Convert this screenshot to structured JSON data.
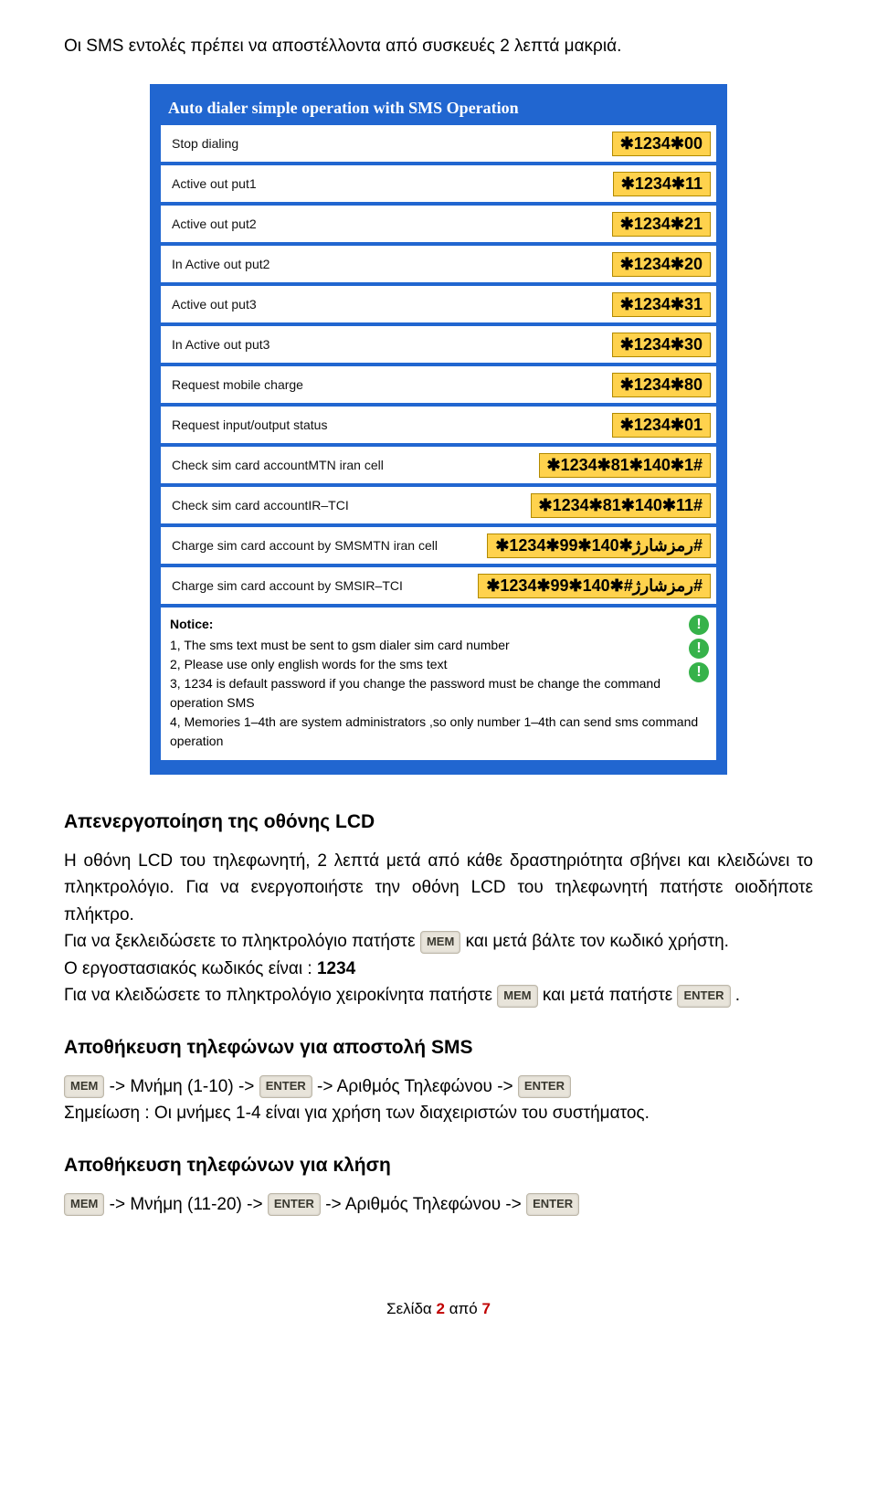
{
  "intro": "Οι SMS εντολές πρέπει να αποστέλλοντα από συσκευές 2 λεπτά μακριά.",
  "panel": {
    "title": "Auto dialer simple operation with SMS Operation",
    "rows": [
      {
        "label": "Stop dialing",
        "code": "✱1234✱00"
      },
      {
        "label": "Active out put1",
        "code": "✱1234✱11"
      },
      {
        "label": "Active out put2",
        "code": "✱1234✱21"
      },
      {
        "label": "In Active out put2",
        "code": "✱1234✱20"
      },
      {
        "label": "Active out put3",
        "code": "✱1234✱31"
      },
      {
        "label": "In Active out put3",
        "code": "✱1234✱30"
      },
      {
        "label": "Request mobile charge",
        "code": "✱1234✱80"
      },
      {
        "label": "Request input/output status",
        "code": "✱1234✱01"
      },
      {
        "label": "Check sim card accountMTN iran cell",
        "code": "✱1234✱81✱140✱1#"
      },
      {
        "label": "Check sim card accountIR–TCI",
        "code": "✱1234✱81✱140✱11#"
      },
      {
        "label": "Charge sim card account by SMSMTN iran cell",
        "code": "✱1234✱99✱140✱رمزشارژ#"
      },
      {
        "label": "Charge sim card account by SMSIR–TCI",
        "code": "✱1234✱99✱140✱#رمزشارژ#"
      }
    ],
    "notice_title": "Notice:",
    "notice_lines": [
      "1, The sms text must be sent to gsm dialer sim card number",
      "2, Please use only english words for the sms text",
      "3, 1234 is default password if you change the password must be change the command operation SMS",
      "4, Memories 1–4th are system administrators ,so only number 1–4th can send sms command operation"
    ]
  },
  "sec1_title": "Απενεργοποίηση της οθόνης LCD",
  "sec1_p1": "Η οθόνη LCD του τηλεφωνητή, 2 λεπτά μετά από κάθε δραστηριότητα σβήνει και κλειδώνει το πληκτρολόγιο. Για να ενεργοποιήστε την οθόνη LCD του τηλεφωνητή πατήστε οιοδήποτε πλήκτρο.",
  "sec1_p2a": "Για να ξεκλειδώσετε το πληκτρολόγιο πατήστε ",
  "sec1_p2b": " και μετά βάλτε τον κωδικό χρήστη.",
  "sec1_p3": "Ο εργοστασιακός κωδικός είναι : ",
  "sec1_code": "1234",
  "sec1_p4a": "Για να κλειδώσετε το πληκτρολόγιο χειροκίνητα πατήστε ",
  "sec1_p4b": " και μετά πατήστε ",
  "sec1_p4c": ".",
  "sec2_title": "Αποθήκευση τηλεφώνων για αποστολή SMS",
  "sec2_flow_a": "-> Μνήμη (1-10) -> ",
  "sec2_flow_b": " -> Αριθμός Τηλεφώνου -> ",
  "sec2_note": "Σημείωση : Οι μνήμες 1-4 είναι για χρήση των διαχειριστών του συστήματος.",
  "sec3_title": "Αποθήκευση τηλεφώνων για κλήση",
  "sec3_flow_a": "-> Μνήμη (11-20) -> ",
  "sec3_flow_b": " -> Αριθμός Τηλεφώνου -> ",
  "btn_mem": "MEM",
  "btn_enter": "ENTER",
  "footer_a": "Σελίδα ",
  "footer_page": "2",
  "footer_b": " από ",
  "footer_total": "7"
}
